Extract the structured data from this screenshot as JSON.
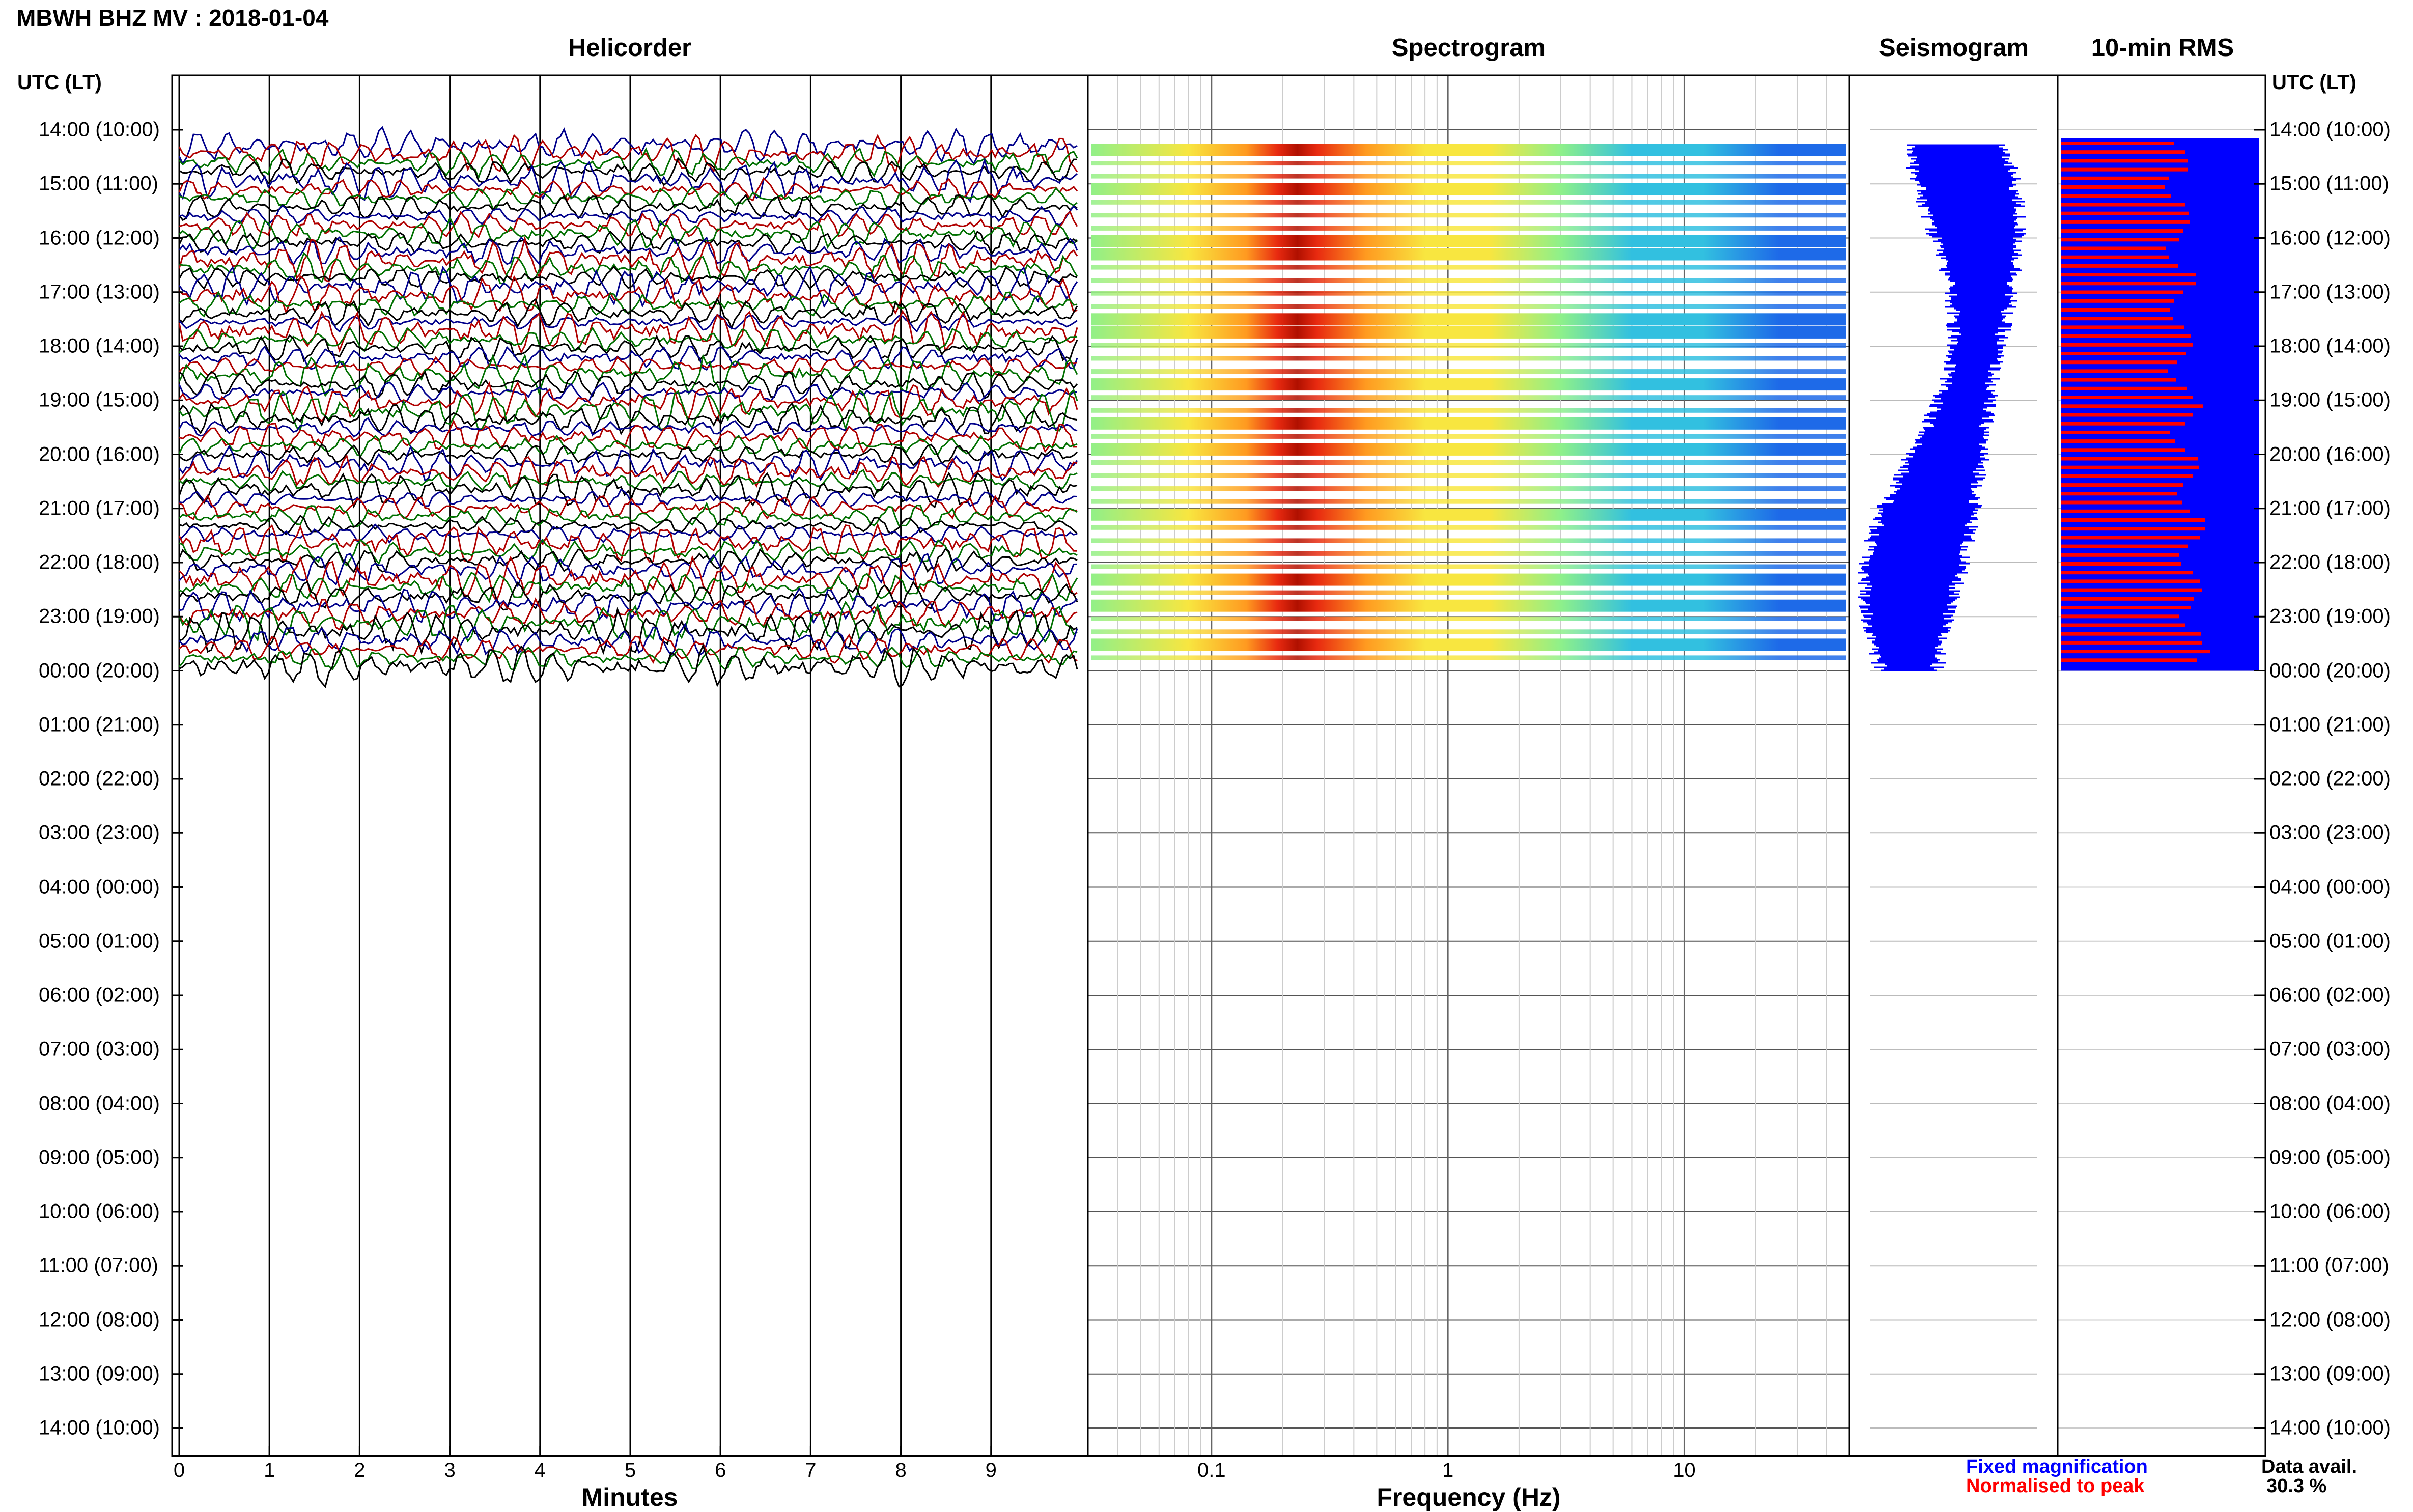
{
  "header": {
    "title": "MBWH BHZ MV : 2018-01-04",
    "utc_label_left": "UTC (LT)",
    "utc_label_right": "UTC (LT)"
  },
  "panels": {
    "helicorder": "Helicorder",
    "spectrogram": "Spectrogram",
    "seismogram": "Seismogram",
    "rms": "10-min RMS"
  },
  "footer": {
    "x_label_helicorder": "Minutes",
    "x_label_spectrogram": "Frequency (Hz)",
    "legend_fixed": "Fixed magnification",
    "legend_normalised": "Normalised to peak",
    "data_avail_label": "Data avail.",
    "data_avail_value": "30.3 %"
  },
  "colors": {
    "trace_colors": [
      "#00008b",
      "#b00000",
      "#007000",
      "#000000"
    ],
    "fixed": "#0000ff",
    "normalised": "#ff0000"
  },
  "time_labels": [
    "14:00 (10:00)",
    "15:00 (11:00)",
    "16:00 (12:00)",
    "17:00 (13:00)",
    "18:00 (14:00)",
    "19:00 (15:00)",
    "20:00 (16:00)",
    "21:00 (17:00)",
    "22:00 (18:00)",
    "23:00 (19:00)",
    "00:00 (20:00)",
    "01:00 (21:00)",
    "02:00 (22:00)",
    "03:00 (23:00)",
    "04:00 (00:00)",
    "05:00 (01:00)",
    "06:00 (02:00)",
    "07:00 (03:00)",
    "08:00 (04:00)",
    "09:00 (05:00)",
    "10:00 (06:00)",
    "11:00 (07:00)",
    "12:00 (08:00)",
    "13:00 (09:00)",
    "14:00 (10:00)"
  ],
  "chart_data": [
    {
      "type": "line",
      "title": "Helicorder",
      "xlabel": "Minutes",
      "xlim": [
        0,
        10
      ],
      "x_ticks": [
        "0",
        "1",
        "2",
        "3",
        "4",
        "5",
        "6",
        "7",
        "8",
        "9"
      ],
      "data_until": "00:00 (20:00)"
    },
    {
      "type": "heatmap",
      "title": "Spectrogram",
      "xlabel": "Frequency (Hz)",
      "x_scale": "log",
      "xlim": [
        0.03,
        50
      ],
      "x_ticks": [
        "0.1",
        "1",
        "10"
      ],
      "peak_frequency_hz": 0.22,
      "data_until": "00:00 (20:00)"
    },
    {
      "type": "line",
      "title": "Seismogram",
      "data_until": "00:00 (20:00)"
    },
    {
      "type": "bar",
      "title": "10-min RMS",
      "series": [
        {
          "name": "Fixed magnification",
          "color": "#0000ff"
        },
        {
          "name": "Normalised to peak",
          "color": "#ff0000"
        }
      ],
      "data_until": "00:00 (20:00)"
    }
  ]
}
